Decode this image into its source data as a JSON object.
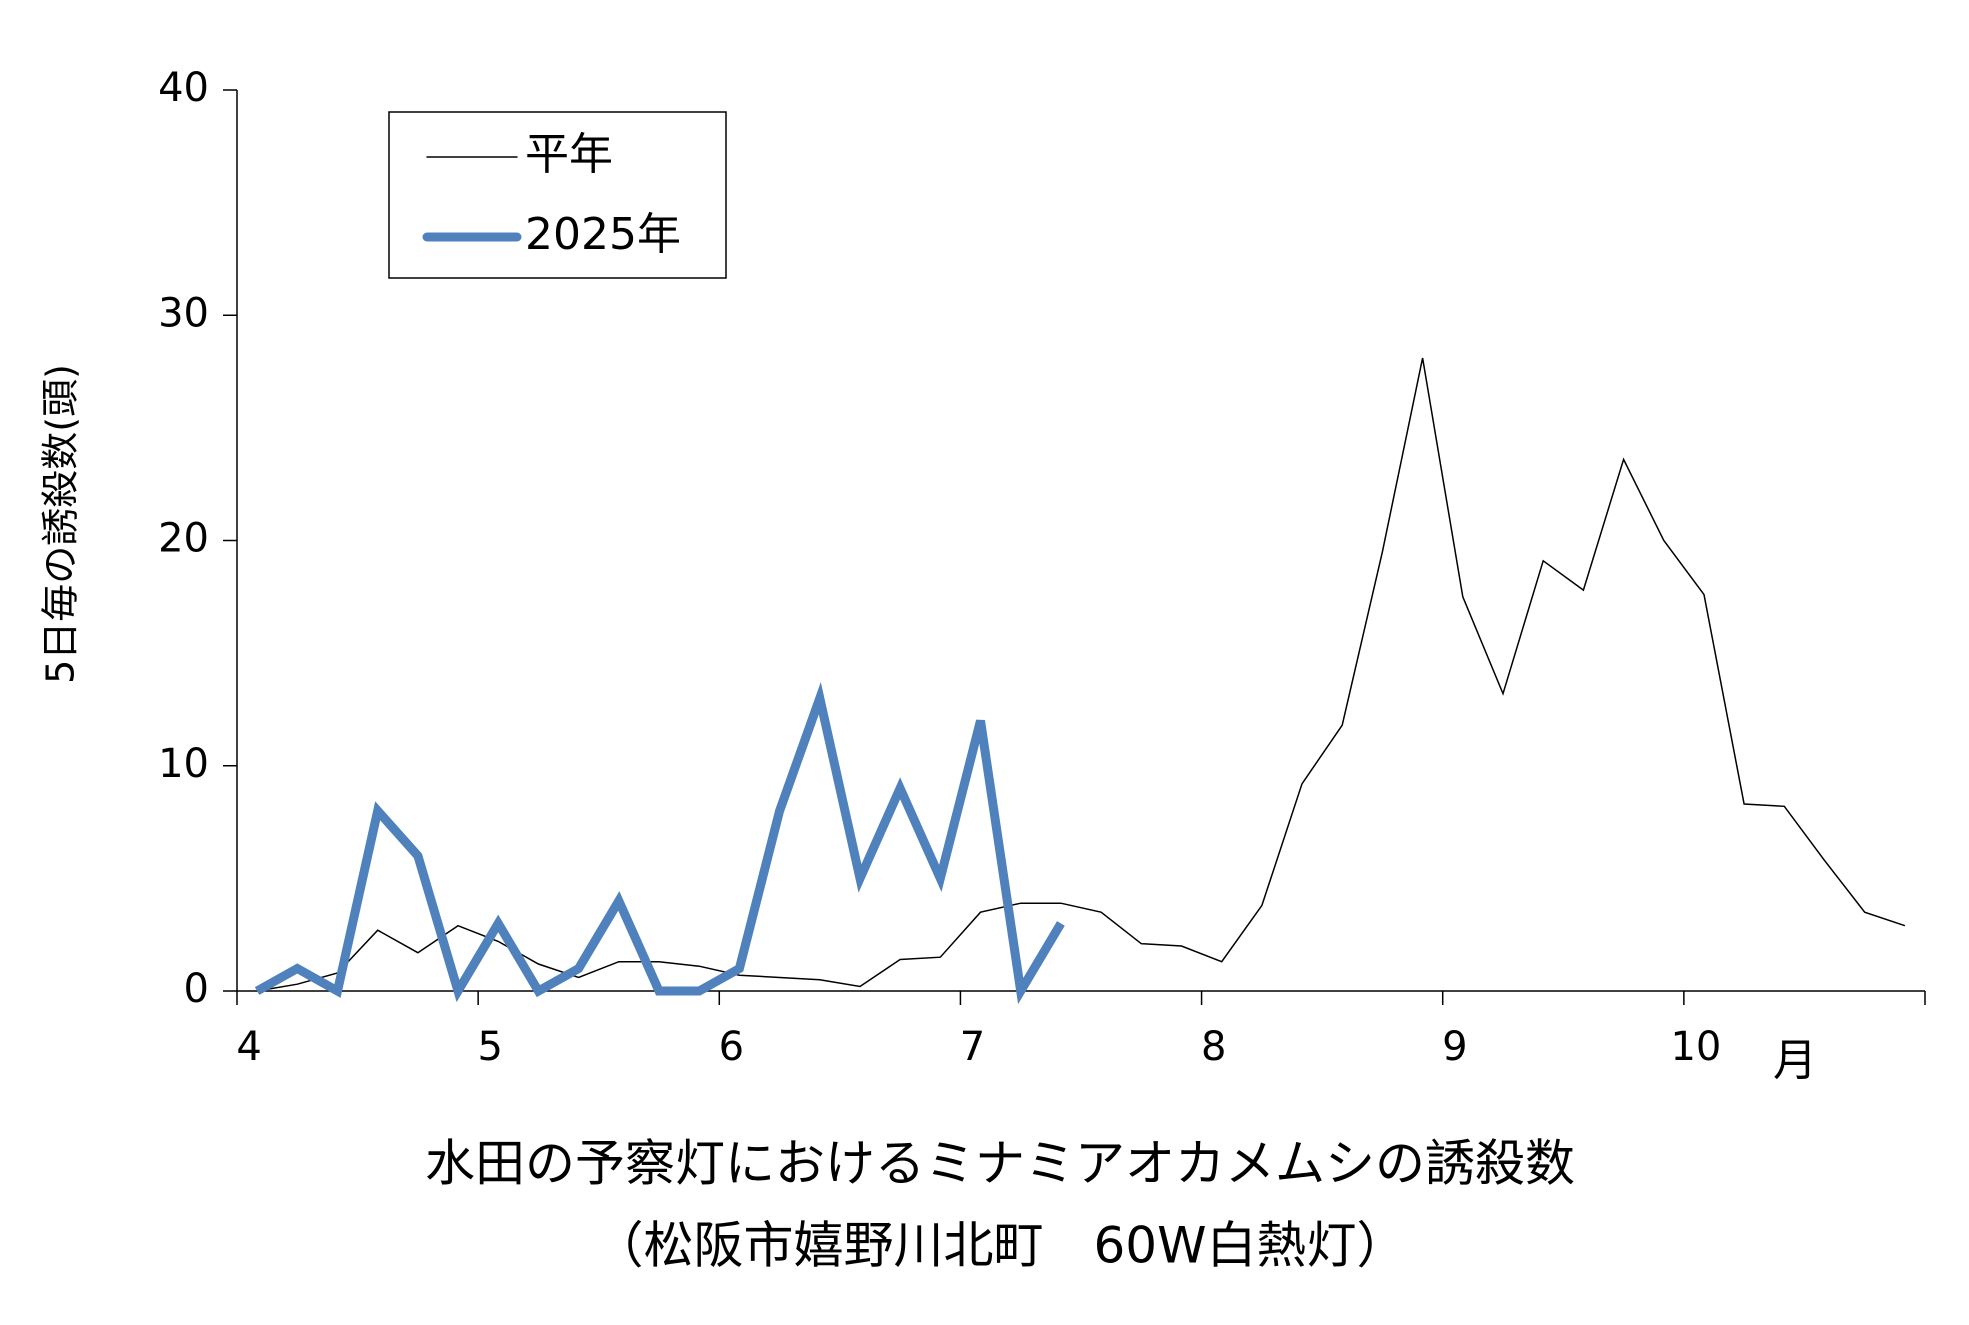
{
  "chart_data": {
    "type": "line",
    "title": "水田の予察灯におけるミナミアオカメムシの誘殺数",
    "subtitle": "（松阪市嬉野川北町　60W白熱灯）",
    "y_label": "5日毎の誘殺数(頭)",
    "x_unit": "月",
    "categories": [
      "4",
      null,
      null,
      null,
      null,
      null,
      "5",
      null,
      null,
      null,
      null,
      null,
      "6",
      null,
      null,
      null,
      null,
      null,
      "7",
      null,
      null,
      null,
      null,
      null,
      "8",
      null,
      null,
      null,
      null,
      null,
      "9",
      null,
      null,
      null,
      null,
      null,
      "10",
      null,
      null,
      null,
      null,
      null
    ],
    "series": [
      {
        "name": "平年",
        "color": "#000000",
        "width": 1.5,
        "values": [
          0,
          0.3,
          0.8,
          2.7,
          1.7,
          2.9,
          2.2,
          1.2,
          0.6,
          1.3,
          1.3,
          1.1,
          0.7,
          0.6,
          0.5,
          0.2,
          1.4,
          1.5,
          3.5,
          3.9,
          3.9,
          3.5,
          2.1,
          2.0,
          1.3,
          3.8,
          9.2,
          11.8,
          19.5,
          28.1,
          17.5,
          13.2,
          19.1,
          17.8,
          23.6,
          20.0,
          17.6,
          8.3,
          8.2,
          5.8,
          3.5,
          2.9
        ]
      },
      {
        "name": "2025年",
        "color": "#4f81bd",
        "width": 9,
        "values": [
          0,
          1,
          0,
          8,
          6,
          0,
          3,
          0,
          1,
          4,
          0,
          0,
          1,
          8,
          13,
          5,
          9,
          5,
          12,
          0,
          3,
          null,
          null,
          null,
          null,
          null,
          null,
          null,
          null,
          null,
          null,
          null,
          null,
          null,
          null,
          null,
          null,
          null,
          null,
          null,
          null,
          null
        ]
      }
    ],
    "ylim": [
      0,
      40
    ],
    "yticks": [
      0,
      10,
      20,
      30,
      40
    ],
    "grid": false,
    "legend": "upper left"
  }
}
